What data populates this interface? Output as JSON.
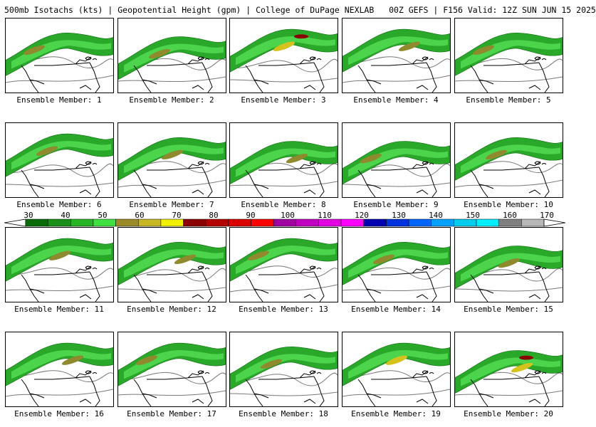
{
  "header": {
    "title": "500mb Isotachs (kts) | Geopotential Height (gpm) | College of DuPage NEXLAB",
    "run": "00Z GEFS | F156 Valid: 12Z SUN JUN 15 2025"
  },
  "members": [
    {
      "label": "Ensemble Member: 1",
      "jet_y": 0.35,
      "max_kts": 65
    },
    {
      "label": "Ensemble Member: 2",
      "jet_y": 0.4,
      "max_kts": 62
    },
    {
      "label": "Ensemble Member: 3",
      "jet_y": 0.3,
      "max_kts": 85
    },
    {
      "label": "Ensemble Member: 4",
      "jet_y": 0.3,
      "max_kts": 65
    },
    {
      "label": "Ensemble Member: 5",
      "jet_y": 0.35,
      "max_kts": 60
    },
    {
      "label": "Ensemble Member: 6",
      "jet_y": 0.3,
      "max_kts": 68
    },
    {
      "label": "Ensemble Member: 7",
      "jet_y": 0.35,
      "max_kts": 60
    },
    {
      "label": "Ensemble Member: 8",
      "jet_y": 0.4,
      "max_kts": 55
    },
    {
      "label": "Ensemble Member: 9",
      "jet_y": 0.4,
      "max_kts": 65
    },
    {
      "label": "Ensemble Member: 10",
      "jet_y": 0.35,
      "max_kts": 60
    },
    {
      "label": "Ensemble Member: 11",
      "jet_y": 0.3,
      "max_kts": 62
    },
    {
      "label": "Ensemble Member: 12",
      "jet_y": 0.35,
      "max_kts": 55
    },
    {
      "label": "Ensemble Member: 13",
      "jet_y": 0.3,
      "max_kts": 62
    },
    {
      "label": "Ensemble Member: 14",
      "jet_y": 0.35,
      "max_kts": 62
    },
    {
      "label": "Ensemble Member: 15",
      "jet_y": 0.4,
      "max_kts": 55
    },
    {
      "label": "Ensemble Member: 16",
      "jet_y": 0.3,
      "max_kts": 62
    },
    {
      "label": "Ensemble Member: 17",
      "jet_y": 0.3,
      "max_kts": 68
    },
    {
      "label": "Ensemble Member: 18",
      "jet_y": 0.35,
      "max_kts": 58
    },
    {
      "label": "Ensemble Member: 19",
      "jet_y": 0.3,
      "max_kts": 72
    },
    {
      "label": "Ensemble Member: 20",
      "jet_y": 0.4,
      "max_kts": 80
    }
  ],
  "colorbar": {
    "tick_labels": [
      "30",
      "40",
      "50",
      "60",
      "70",
      "80",
      "90",
      "100",
      "110",
      "120",
      "130",
      "140",
      "150",
      "160",
      "170"
    ],
    "colors": [
      "#0b6b0b",
      "#1a8f1a",
      "#27b427",
      "#40e040",
      "#9a8a2a",
      "#c7b722",
      "#f0f000",
      "#8b0000",
      "#b30000",
      "#d90000",
      "#ff0000",
      "#a000a0",
      "#c000c0",
      "#e000e0",
      "#ff00ff",
      "#0000b0",
      "#0033dd",
      "#0066ff",
      "#00a0ff",
      "#00ccee",
      "#00eeff",
      "#808080",
      "#b8b8b8"
    ]
  },
  "style": {
    "land_line": "#000000",
    "height_line": "#7a7a7a",
    "jet_low": "#2aa82a",
    "jet_mid": "#4cd44c",
    "jet_core": "#8f8a2e",
    "jet_max": "#d6c21c"
  }
}
